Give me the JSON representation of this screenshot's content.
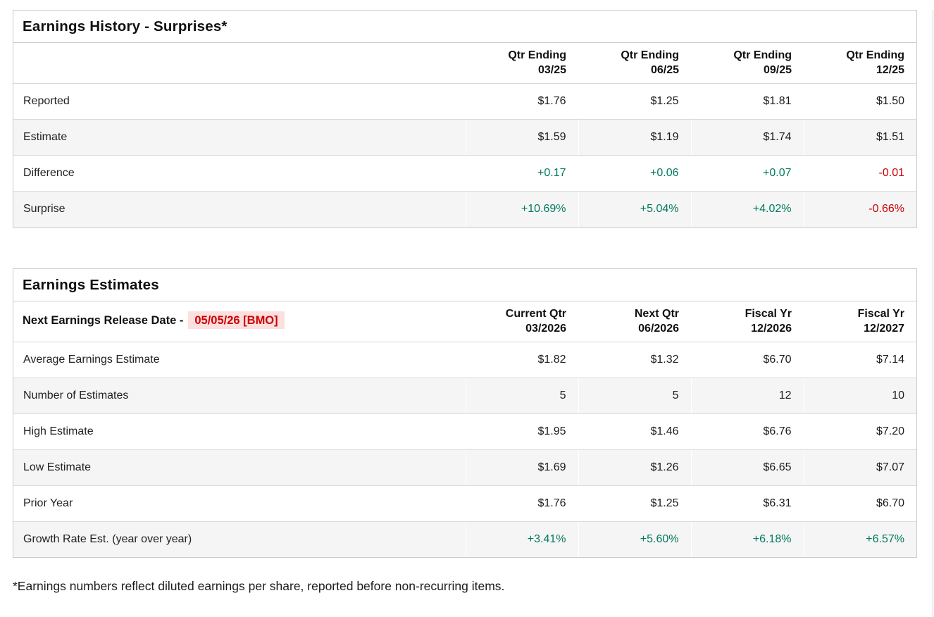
{
  "colors": {
    "positive": "#007a5e",
    "negative": "#cc0000",
    "highlight_bg": "#fcdfdf",
    "stripe": "#f5f5f5",
    "border": "#cccccc",
    "row_border": "#dbdbdb",
    "text": "#1b1b1b"
  },
  "surprises": {
    "title": "Earnings History - Surprises*",
    "columns": [
      {
        "line1": "Qtr Ending",
        "line2": "03/25"
      },
      {
        "line1": "Qtr Ending",
        "line2": "06/25"
      },
      {
        "line1": "Qtr Ending",
        "line2": "09/25"
      },
      {
        "line1": "Qtr Ending",
        "line2": "12/25"
      }
    ],
    "rows": [
      {
        "label": "Reported",
        "values": [
          "$1.76",
          "$1.25",
          "$1.81",
          "$1.50"
        ]
      },
      {
        "label": "Estimate",
        "values": [
          "$1.59",
          "$1.19",
          "$1.74",
          "$1.51"
        ]
      },
      {
        "label": "Difference",
        "values": [
          "+0.17",
          "+0.06",
          "+0.07",
          "-0.01"
        ]
      },
      {
        "label": "Surprise",
        "values": [
          "+10.69%",
          "+5.04%",
          "+4.02%",
          "-0.66%"
        ]
      }
    ]
  },
  "estimates": {
    "title": "Earnings Estimates",
    "release_date_label": "Next Earnings Release Date -",
    "release_date_value": "05/05/26 [BMO]",
    "columns": [
      {
        "line1": "Current Qtr",
        "line2": "03/2026"
      },
      {
        "line1": "Next Qtr",
        "line2": "06/2026"
      },
      {
        "line1": "Fiscal Yr",
        "line2": "12/2026"
      },
      {
        "line1": "Fiscal Yr",
        "line2": "12/2027"
      }
    ],
    "rows": [
      {
        "label": "Average Earnings Estimate",
        "values": [
          "$1.82",
          "$1.32",
          "$6.70",
          "$7.14"
        ]
      },
      {
        "label": "Number of Estimates",
        "values": [
          "5",
          "5",
          "12",
          "10"
        ]
      },
      {
        "label": "High Estimate",
        "values": [
          "$1.95",
          "$1.46",
          "$6.76",
          "$7.20"
        ]
      },
      {
        "label": "Low Estimate",
        "values": [
          "$1.69",
          "$1.26",
          "$6.65",
          "$7.07"
        ]
      },
      {
        "label": "Prior Year",
        "values": [
          "$1.76",
          "$1.25",
          "$6.31",
          "$6.70"
        ]
      },
      {
        "label": "Growth Rate Est. (year over year)",
        "values": [
          "+3.41%",
          "+5.60%",
          "+6.18%",
          "+6.57%"
        ]
      }
    ]
  },
  "footnote": "*Earnings numbers reflect diluted earnings per share, reported before non-recurring items."
}
